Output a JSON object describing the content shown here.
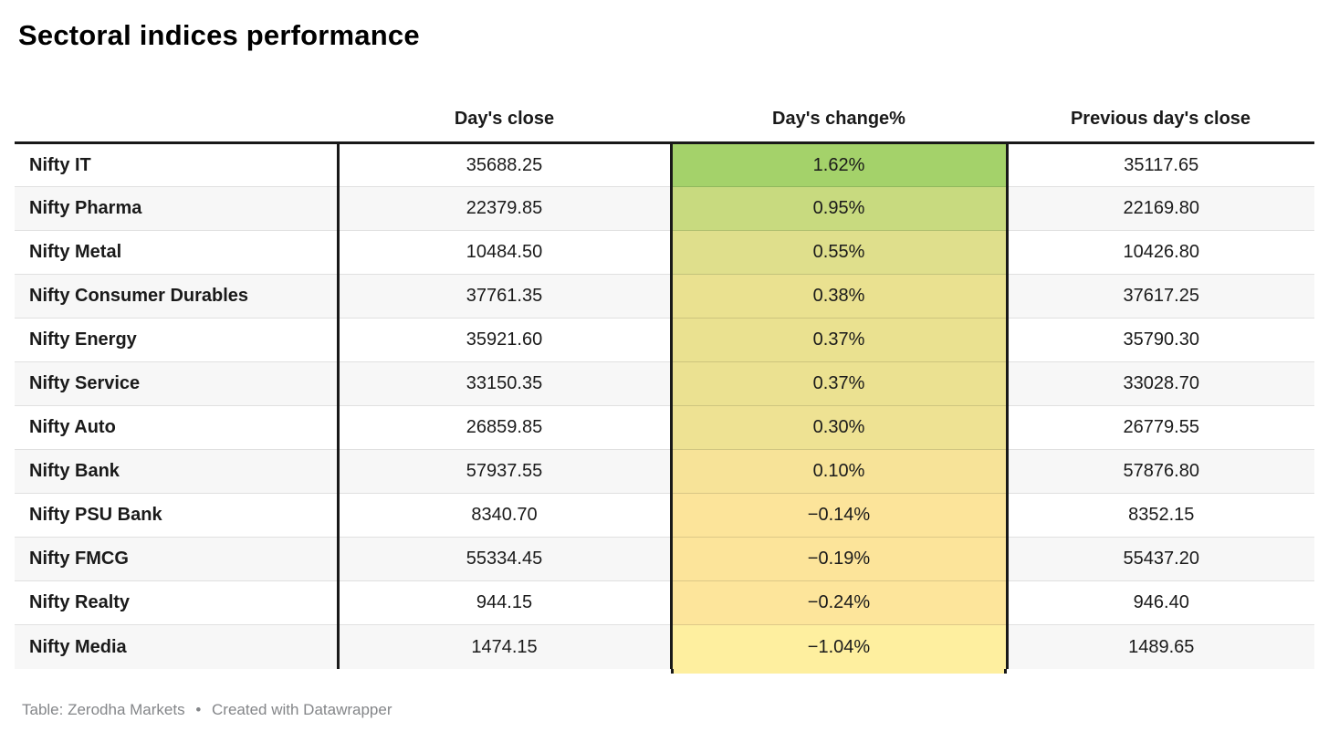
{
  "title": "Sectoral indices performance",
  "footer": {
    "source": "Table: Zerodha Markets",
    "separator": "•",
    "attribution": "Created with Datawrapper"
  },
  "colors": {
    "border": "#191919",
    "row_stripe": "#f7f7f7",
    "footer_text": "#848689",
    "positive_max": "#a4d26a",
    "negative_min": "#feef9f"
  },
  "chart_data": {
    "type": "table",
    "title": "Sectoral indices performance",
    "columns": [
      "",
      "Day's close",
      "Day's change%",
      "Previous day's close"
    ],
    "legend_position": "none",
    "grid": "row-stripes",
    "heatmap_column": "Day's change%",
    "rows": [
      {
        "name": "Nifty IT",
        "close": "35688.25",
        "change": "1.62%",
        "change_value": 1.62,
        "prev_close": "35117.65",
        "change_color": "#a4d26a"
      },
      {
        "name": "Nifty Pharma",
        "close": "22379.85",
        "change": "0.95%",
        "change_value": 0.95,
        "prev_close": "22169.80",
        "change_color": "#c8da7f"
      },
      {
        "name": "Nifty Metal",
        "close": "10484.50",
        "change": "0.55%",
        "change_value": 0.55,
        "prev_close": "10426.80",
        "change_color": "#dfdf8c"
      },
      {
        "name": "Nifty Consumer Durables",
        "close": "37761.35",
        "change": "0.38%",
        "change_value": 0.38,
        "prev_close": "37617.25",
        "change_color": "#eae190"
      },
      {
        "name": "Nifty Energy",
        "close": "35921.60",
        "change": "0.37%",
        "change_value": 0.37,
        "prev_close": "35790.30",
        "change_color": "#eae190"
      },
      {
        "name": "Nifty Service",
        "close": "33150.35",
        "change": "0.37%",
        "change_value": 0.37,
        "prev_close": "33028.70",
        "change_color": "#ebe191"
      },
      {
        "name": "Nifty Auto",
        "close": "26859.85",
        "change": "0.30%",
        "change_value": 0.3,
        "prev_close": "26779.55",
        "change_color": "#eee293"
      },
      {
        "name": "Nifty Bank",
        "close": "57937.55",
        "change": "0.10%",
        "change_value": 0.1,
        "prev_close": "57876.80",
        "change_color": "#f7e398"
      },
      {
        "name": "Nifty PSU Bank",
        "close": "8340.70",
        "change": "−0.14%",
        "change_value": -0.14,
        "prev_close": "8352.15",
        "change_color": "#fce49a"
      },
      {
        "name": "Nifty FMCG",
        "close": "55334.45",
        "change": "−0.19%",
        "change_value": -0.19,
        "prev_close": "55437.20",
        "change_color": "#fce49a"
      },
      {
        "name": "Nifty Realty",
        "close": "944.15",
        "change": "−0.24%",
        "change_value": -0.24,
        "prev_close": "946.40",
        "change_color": "#fde59b"
      },
      {
        "name": "Nifty Media",
        "close": "1474.15",
        "change": "−1.04%",
        "change_value": -1.04,
        "prev_close": "1489.65",
        "change_color": "#feef9f"
      }
    ]
  }
}
